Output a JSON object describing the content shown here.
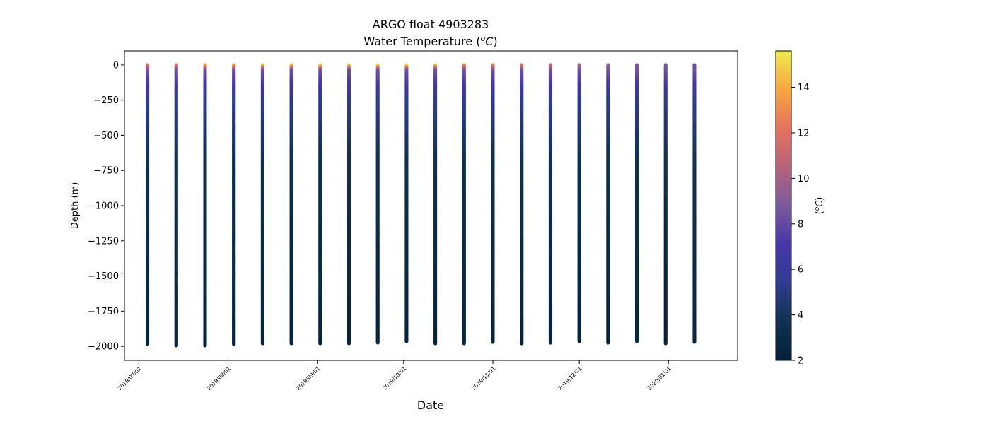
{
  "chart_data": {
    "type": "scatter",
    "title": "ARGO float 4903283",
    "subtitle_text": "Water Temperature (",
    "subtitle_sup": "o",
    "subtitle_unit": "C",
    "subtitle_close": ")",
    "xlabel": "Date",
    "ylabel": "Depth (m)",
    "colorbar_label_open": "(",
    "colorbar_label_sup": "o",
    "colorbar_label_unit": "C",
    "colorbar_label_close": ")",
    "xlim": [
      "2019-06-26",
      "2020-01-25"
    ],
    "ylim": [
      -2100,
      100
    ],
    "x_ticks": [
      "2019/07/01",
      "2019/08/01",
      "2019/09/01",
      "2019/10/01",
      "2019/11/01",
      "2019/12/01",
      "2020/01/01"
    ],
    "y_ticks": [
      0,
      -250,
      -500,
      -750,
      -1000,
      -1250,
      -1500,
      -1750,
      -2000
    ],
    "color_range": [
      2,
      15.6
    ],
    "colorbar_ticks": [
      2,
      4,
      6,
      8,
      10,
      12,
      14
    ],
    "colormap": [
      "#03213a",
      "#0f3250",
      "#2e3b8f",
      "#4637a8",
      "#7a5a9c",
      "#b5627a",
      "#e4735c",
      "#f8a640",
      "#eceb4c"
    ],
    "grid": false,
    "profiles": [
      {
        "date": "2019-07-04",
        "max_depth": -1985,
        "surface_temp": 12.5
      },
      {
        "date": "2019-07-14",
        "max_depth": -1995,
        "surface_temp": 12.5
      },
      {
        "date": "2019-07-24",
        "max_depth": -1995,
        "surface_temp": 14.0
      },
      {
        "date": "2019-08-03",
        "max_depth": -1985,
        "surface_temp": 14.0
      },
      {
        "date": "2019-08-13",
        "max_depth": -1980,
        "surface_temp": 15.0
      },
      {
        "date": "2019-08-23",
        "max_depth": -1980,
        "surface_temp": 15.0
      },
      {
        "date": "2019-09-02",
        "max_depth": -1980,
        "surface_temp": 15.3
      },
      {
        "date": "2019-09-12",
        "max_depth": -1980,
        "surface_temp": 15.3
      },
      {
        "date": "2019-09-22",
        "max_depth": -1975,
        "surface_temp": 15.5
      },
      {
        "date": "2019-10-02",
        "max_depth": -1965,
        "surface_temp": 15.5
      },
      {
        "date": "2019-10-12",
        "max_depth": -1980,
        "surface_temp": 15.0
      },
      {
        "date": "2019-10-22",
        "max_depth": -1980,
        "surface_temp": 13.5
      },
      {
        "date": "2019-11-01",
        "max_depth": -1970,
        "surface_temp": 13.0
      },
      {
        "date": "2019-11-11",
        "max_depth": -1980,
        "surface_temp": 12.5
      },
      {
        "date": "2019-11-21",
        "max_depth": -1975,
        "surface_temp": 11.5
      },
      {
        "date": "2019-12-01",
        "max_depth": -1965,
        "surface_temp": 10.5
      },
      {
        "date": "2019-12-11",
        "max_depth": -1975,
        "surface_temp": 10.0
      },
      {
        "date": "2019-12-21",
        "max_depth": -1965,
        "surface_temp": 9.0
      },
      {
        "date": "2019-12-31",
        "max_depth": -1980,
        "surface_temp": 8.5
      },
      {
        "date": "2020-01-10",
        "max_depth": -1970,
        "surface_temp": 8.0
      }
    ]
  }
}
